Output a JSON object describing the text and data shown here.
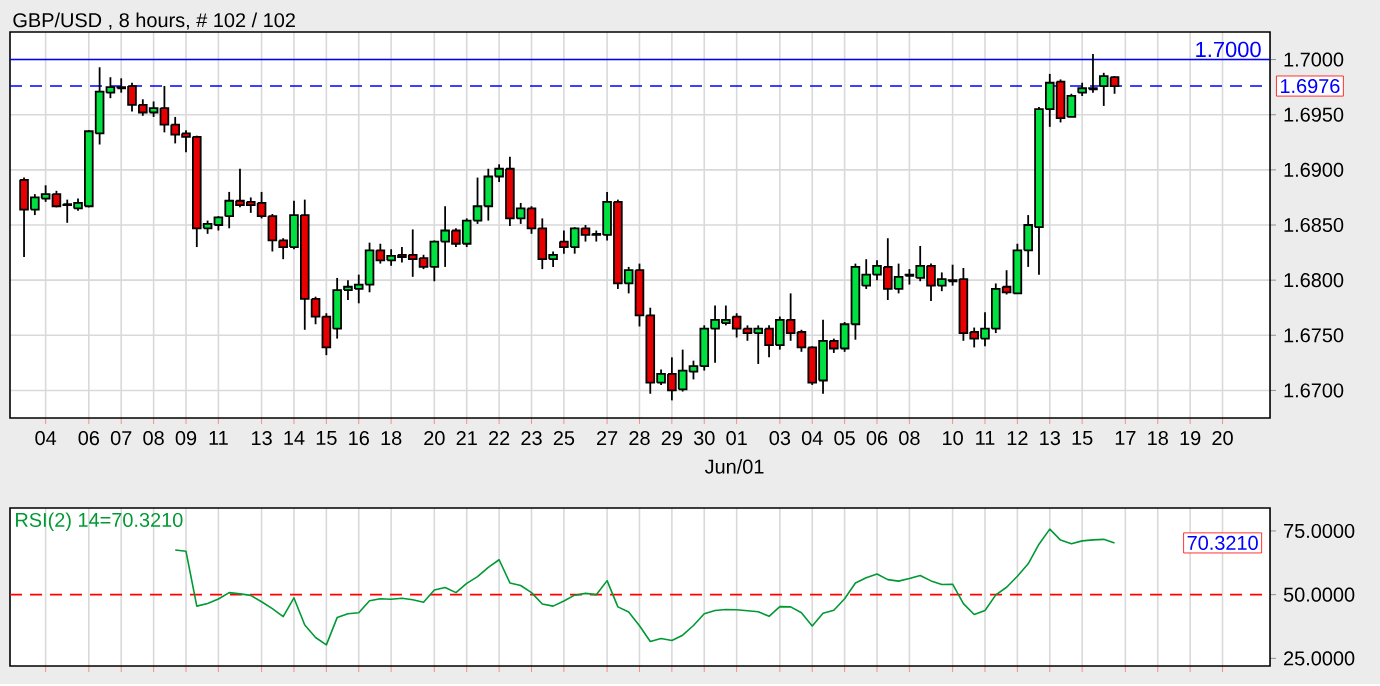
{
  "chart_data": [
    {
      "type": "candlestick",
      "title": "GBP/USD , 8 hours, # 102 / 102",
      "categories": [
        null,
        null,
        "04",
        null,
        null,
        null,
        "06",
        null,
        null,
        "07",
        null,
        null,
        "08",
        null,
        null,
        "09",
        null,
        null,
        "11",
        null,
        null,
        null,
        "13",
        null,
        null,
        "14",
        null,
        null,
        "15",
        null,
        null,
        "16",
        null,
        null,
        "18",
        null,
        null,
        null,
        "20",
        null,
        null,
        "21",
        null,
        null,
        "22",
        null,
        null,
        "23",
        null,
        null,
        "25",
        null,
        null,
        null,
        "27",
        null,
        null,
        "28",
        null,
        null,
        "29",
        null,
        null,
        "30",
        null,
        null,
        "01",
        null,
        null,
        null,
        "03",
        null,
        null,
        "04",
        null,
        null,
        "05",
        null,
        null,
        "06",
        null,
        null,
        "08",
        null,
        null,
        null,
        "10",
        null,
        null,
        "11",
        null,
        null,
        "12",
        null,
        null,
        "13",
        null,
        null,
        "15",
        null,
        null,
        null,
        "17",
        null,
        null,
        "18",
        null,
        null,
        "19",
        null,
        null,
        "20",
        null,
        null,
        null,
        null
      ],
      "ohlc": [
        [
          1.6891,
          1.6893,
          1.6821,
          1.6864
        ],
        [
          1.6864,
          1.6878,
          1.6859,
          1.6875
        ],
        [
          1.6874,
          1.6886,
          1.6871,
          1.6878
        ],
        [
          1.6878,
          1.6881,
          1.6866,
          1.6867
        ],
        [
          1.6869,
          1.6873,
          1.6852,
          1.6868
        ],
        [
          1.6865,
          1.6874,
          1.6863,
          1.687
        ],
        [
          1.6867,
          1.6936,
          1.6866,
          1.6935
        ],
        [
          1.6933,
          1.6993,
          1.6923,
          1.6971
        ],
        [
          1.697,
          1.6984,
          1.6965,
          1.6975
        ],
        [
          1.6974,
          1.6983,
          1.697,
          1.6975
        ],
        [
          1.6976,
          1.6979,
          1.6953,
          1.6959
        ],
        [
          1.6959,
          1.6964,
          1.6949,
          1.6952
        ],
        [
          1.6952,
          1.6962,
          1.6948,
          1.6956
        ],
        [
          1.6956,
          1.6976,
          1.6934,
          1.6941
        ],
        [
          1.6941,
          1.6948,
          1.6924,
          1.6932
        ],
        [
          1.6933,
          1.6936,
          1.6916,
          1.693
        ],
        [
          1.693,
          1.6931,
          1.683,
          1.6847
        ],
        [
          1.6847,
          1.6854,
          1.6842,
          1.6851
        ],
        [
          1.685,
          1.6858,
          1.6845,
          1.6857
        ],
        [
          1.6858,
          1.688,
          1.6847,
          1.6872
        ],
        [
          1.6872,
          1.6901,
          1.6866,
          1.6868
        ],
        [
          1.6871,
          1.6875,
          1.6861,
          1.6868
        ],
        [
          1.687,
          1.688,
          1.6856,
          1.6858
        ],
        [
          1.6858,
          1.686,
          1.6826,
          1.6836
        ],
        [
          1.6836,
          1.6838,
          1.6819,
          1.683
        ],
        [
          1.683,
          1.6872,
          1.6828,
          1.6859
        ],
        [
          1.6859,
          1.6873,
          1.6755,
          1.6783
        ],
        [
          1.6783,
          1.6785,
          1.676,
          1.6767
        ],
        [
          1.6767,
          1.677,
          1.6732,
          1.6739
        ],
        [
          1.6756,
          1.6802,
          1.6747,
          1.6791
        ],
        [
          1.6791,
          1.68,
          1.6782,
          1.6794
        ],
        [
          1.6792,
          1.6805,
          1.6779,
          1.6796
        ],
        [
          1.6796,
          1.6834,
          1.6789,
          1.6827
        ],
        [
          1.6827,
          1.6833,
          1.6815,
          1.6818
        ],
        [
          1.6818,
          1.6828,
          1.6813,
          1.6822
        ],
        [
          1.6823,
          1.683,
          1.6816,
          1.6821
        ],
        [
          1.6823,
          1.6846,
          1.6803,
          1.6819
        ],
        [
          1.682,
          1.6823,
          1.681,
          1.6812
        ],
        [
          1.6812,
          1.6836,
          1.6799,
          1.6835
        ],
        [
          1.6835,
          1.6867,
          1.6812,
          1.6845
        ],
        [
          1.6845,
          1.6847,
          1.683,
          1.6833
        ],
        [
          1.6833,
          1.6856,
          1.683,
          1.6854
        ],
        [
          1.6854,
          1.6893,
          1.6851,
          1.6867
        ],
        [
          1.6867,
          1.6901,
          1.6854,
          1.6894
        ],
        [
          1.6894,
          1.6905,
          1.6889,
          1.6901
        ],
        [
          1.6901,
          1.6912,
          1.6849,
          1.6856
        ],
        [
          1.6856,
          1.687,
          1.6851,
          1.6865
        ],
        [
          1.6865,
          1.6867,
          1.6842,
          1.6847
        ],
        [
          1.6847,
          1.6856,
          1.681,
          1.6819
        ],
        [
          1.6819,
          1.6826,
          1.6812,
          1.6823
        ],
        [
          1.6835,
          1.6845,
          1.6824,
          1.683
        ],
        [
          1.683,
          1.6848,
          1.6824,
          1.6847
        ],
        [
          1.6847,
          1.685,
          1.6835,
          1.6841
        ],
        [
          1.6842,
          1.6845,
          1.6835,
          1.6841
        ],
        [
          1.6841,
          1.688,
          1.6836,
          1.6871
        ],
        [
          1.6871,
          1.6873,
          1.6792,
          1.6797
        ],
        [
          1.6797,
          1.6812,
          1.6788,
          1.6809
        ],
        [
          1.6809,
          1.6815,
          1.6758,
          1.6768
        ],
        [
          1.6768,
          1.6775,
          1.6697,
          1.6707
        ],
        [
          1.6707,
          1.6719,
          1.6705,
          1.6715
        ],
        [
          1.6715,
          1.673,
          1.6691,
          1.67
        ],
        [
          1.6701,
          1.6737,
          1.6699,
          1.6718
        ],
        [
          1.6717,
          1.6727,
          1.671,
          1.6722
        ],
        [
          1.6722,
          1.6759,
          1.6718,
          1.6756
        ],
        [
          1.6756,
          1.6777,
          1.6725,
          1.6764
        ],
        [
          1.6761,
          1.6777,
          1.6759,
          1.6764
        ],
        [
          1.6767,
          1.677,
          1.6748,
          1.6756
        ],
        [
          1.6756,
          1.6759,
          1.6745,
          1.6752
        ],
        [
          1.6752,
          1.6759,
          1.6724,
          1.6756
        ],
        [
          1.6756,
          1.6759,
          1.673,
          1.6741
        ],
        [
          1.6741,
          1.6767,
          1.6737,
          1.6764
        ],
        [
          1.6764,
          1.6788,
          1.6745,
          1.6752
        ],
        [
          1.6753,
          1.6755,
          1.6735,
          1.6739
        ],
        [
          1.6739,
          1.674,
          1.6705,
          1.6707
        ],
        [
          1.6709,
          1.6764,
          1.6697,
          1.6745
        ],
        [
          1.6745,
          1.6747,
          1.6734,
          1.6738
        ],
        [
          1.6738,
          1.6762,
          1.6735,
          1.676
        ],
        [
          1.676,
          1.6815,
          1.6746,
          1.6812
        ],
        [
          1.6795,
          1.6819,
          1.6792,
          1.6805
        ],
        [
          1.6805,
          1.6818,
          1.68,
          1.6813
        ],
        [
          1.6812,
          1.6838,
          1.6782,
          1.6792
        ],
        [
          1.6792,
          1.6815,
          1.6788,
          1.6803
        ],
        [
          1.6804,
          1.681,
          1.6796,
          1.6805
        ],
        [
          1.6802,
          1.6831,
          1.6799,
          1.6813
        ],
        [
          1.6813,
          1.6815,
          1.6781,
          1.6795
        ],
        [
          1.6795,
          1.6807,
          1.679,
          1.6801
        ],
        [
          1.6799,
          1.6814,
          1.6795,
          1.68
        ],
        [
          1.6801,
          1.6811,
          1.6745,
          1.6752
        ],
        [
          1.6753,
          1.6757,
          1.6739,
          1.6747
        ],
        [
          1.6747,
          1.6771,
          1.674,
          1.6756
        ],
        [
          1.6756,
          1.6797,
          1.6752,
          1.6792
        ],
        [
          1.6794,
          1.6809,
          1.6787,
          1.6789
        ],
        [
          1.6788,
          1.6833,
          1.6788,
          1.6827
        ],
        [
          1.6827,
          1.6859,
          1.6812,
          1.685
        ],
        [
          1.6848,
          1.6957,
          1.6805,
          1.6955
        ],
        [
          1.6955,
          1.6987,
          1.6939,
          1.6979
        ],
        [
          1.698,
          1.6982,
          1.6943,
          1.6947
        ],
        [
          1.6948,
          1.6969,
          1.6948,
          1.6967
        ],
        [
          1.697,
          1.6979,
          1.6967,
          1.6974
        ],
        [
          1.6973,
          1.7005,
          1.697,
          1.6974
        ],
        [
          1.6976,
          1.6988,
          1.6958,
          1.6985
        ],
        [
          1.6984,
          1.6985,
          1.6969,
          1.6976
        ],
        null,
        null,
        null,
        null,
        null,
        null,
        null,
        null,
        null,
        null,
        null,
        null,
        null,
        null
      ],
      "colors": [
        "#e80000",
        "#00e040",
        "#00e040",
        "#e80000",
        "#e80000",
        "#00e040",
        "#00e040",
        "#00e040",
        "#00e040",
        "#00e040",
        "#e80000",
        "#e80000",
        "#00e040",
        "#e80000",
        "#e80000",
        "#e80000",
        "#e80000",
        "#00e040",
        "#00e040",
        "#00e040",
        "#e80000",
        "#e80000",
        "#e80000",
        "#e80000",
        "#e80000",
        "#00e040",
        "#e80000",
        "#e80000",
        "#e80000",
        "#00e040",
        "#00e040",
        "#00e040",
        "#00e040",
        "#e80000",
        "#00e040",
        "#e80000",
        "#e80000",
        "#e80000",
        "#00e040",
        "#00e040",
        "#e80000",
        "#00e040",
        "#00e040",
        "#00e040",
        "#00e040",
        "#e80000",
        "#00e040",
        "#e80000",
        "#e80000",
        "#00e040",
        "#e80000",
        "#00e040",
        "#e80000",
        "#e80000",
        "#00e040",
        "#e80000",
        "#00e040",
        "#e80000",
        "#e80000",
        "#00e040",
        "#e80000",
        "#00e040",
        "#00e040",
        "#00e040",
        "#00e040",
        "#00e040",
        "#e80000",
        "#e80000",
        "#00e040",
        "#e80000",
        "#00e040",
        "#e80000",
        "#e80000",
        "#e80000",
        "#00e040",
        "#e80000",
        "#00e040",
        "#00e040",
        "#00e040",
        "#00e040",
        "#e80000",
        "#00e040",
        "#00e040",
        "#00e040",
        "#e80000",
        "#00e040",
        "#00e040",
        "#e80000",
        "#e80000",
        "#00e040",
        "#00e040",
        "#e80000",
        "#00e040",
        "#00e040",
        "#00e040",
        "#00e040",
        "#e80000",
        "#00e040",
        "#00e040",
        "#00e040",
        "#00e040",
        "#e80000",
        null,
        null,
        null,
        null,
        null,
        null,
        null,
        null,
        null,
        null,
        null,
        null,
        null,
        null
      ],
      "ylim": [
        1.6675,
        1.7025
      ],
      "yticks": [
        {
          "value": 1.67,
          "label": "1.6700"
        },
        {
          "value": 1.675,
          "label": "1.6750"
        },
        {
          "value": 1.68,
          "label": "1.6800"
        },
        {
          "value": 1.685,
          "label": "1.6850"
        },
        {
          "value": 1.69,
          "label": "1.6900"
        },
        {
          "value": 1.695,
          "label": "1.6950"
        },
        {
          "value": 1.7,
          "label": "1.7000"
        }
      ],
      "grid": true,
      "ref_lines": [
        {
          "axis": "y",
          "value": 1.7,
          "label": "1.7000",
          "color": "#0000ff"
        },
        {
          "axis": "y",
          "value": 1.6976,
          "label": "1.6976",
          "color": "#0000ff",
          "line_style": "dashed"
        }
      ],
      "annotations": [
        "Jun/01"
      ]
    },
    {
      "type": "line",
      "title": "RSI(2) 14=70.3210",
      "categories": [
        null,
        null,
        null,
        null,
        null,
        null,
        null,
        null,
        null,
        null,
        null,
        null,
        null,
        null,
        null,
        null,
        null,
        null,
        null,
        null,
        null,
        null,
        null,
        null,
        null,
        null,
        null,
        null,
        null,
        null,
        null,
        null,
        null,
        null,
        null,
        null,
        null,
        null,
        null,
        null,
        null,
        null,
        null,
        null,
        null,
        null,
        null,
        null,
        null,
        null,
        null,
        null,
        null,
        null,
        null,
        null,
        null,
        null,
        null,
        null,
        null,
        null,
        null,
        null,
        null,
        null,
        null,
        null,
        null,
        null,
        null,
        null,
        null,
        null,
        null,
        null,
        null,
        null,
        null,
        null,
        null,
        null,
        null,
        null,
        null,
        null,
        null,
        null,
        null,
        null,
        null,
        null,
        null,
        null,
        null,
        null,
        null,
        null,
        null,
        null,
        null,
        null,
        null,
        null,
        null,
        null,
        null,
        null,
        null,
        null,
        null,
        null,
        null,
        null,
        null,
        null
      ],
      "series": [
        {
          "color": "#009933",
          "values": [
            null,
            null,
            null,
            null,
            null,
            null,
            null,
            null,
            null,
            null,
            null,
            null,
            null,
            null,
            67.5,
            67,
            45.5,
            46.5,
            48.3,
            50.8,
            50.3,
            49.7,
            47.2,
            44.5,
            41.4,
            48.7,
            38.1,
            33.2,
            30.3,
            41,
            42.5,
            42.9,
            47.6,
            48.4,
            48.2,
            48.6,
            48,
            47,
            51.8,
            52.8,
            50.8,
            54.4,
            57.1,
            60.7,
            63.7,
            54.6,
            53.6,
            50.8,
            46.3,
            45.5,
            47.5,
            49.8,
            50.5,
            50,
            55.5,
            45.2,
            43.2,
            37.8,
            31.6,
            32.8,
            32,
            34.1,
            37.9,
            42.5,
            43.8,
            44.2,
            44.1,
            43.7,
            43.3,
            41.5,
            45.3,
            45.2,
            42.9,
            37.7,
            42.7,
            43.9,
            48.4,
            54.6,
            56.6,
            58.1,
            55.9,
            55.3,
            56.3,
            57.5,
            55.4,
            54,
            54.1,
            46.5,
            42.2,
            43.8,
            49.9,
            52.9,
            57.2,
            62.1,
            69.8,
            75.7,
            71.4,
            70,
            71.1,
            71.5,
            71.7,
            70.3,
            null,
            null,
            null,
            null,
            null,
            null,
            null,
            null,
            null,
            null,
            null,
            null,
            null,
            null
          ]
        }
      ],
      "ylim": [
        22,
        84
      ],
      "yticks": [
        {
          "value": 25,
          "label": "25.0000"
        },
        {
          "value": 50,
          "label": "50.0000"
        },
        {
          "value": 75,
          "label": "75.0000"
        }
      ],
      "grid": "x",
      "tick_labels": "y",
      "ref_lines": [
        {
          "axis": "y",
          "value": 50,
          "color": "#ff0000",
          "line_style": "dashed"
        }
      ],
      "annotations": [
        "70.3210"
      ]
    }
  ]
}
